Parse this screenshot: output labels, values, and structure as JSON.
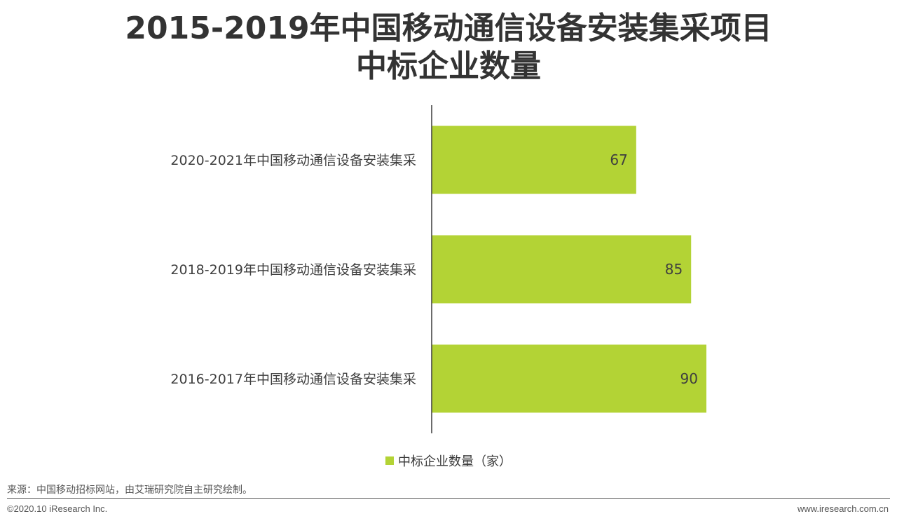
{
  "page": {
    "title_line1": "2015-2019年中国移动通信设备安装集采项目",
    "title_line2": "中标企业数量",
    "source": "来源：中国移动招标网站，由艾瑞研究院自主研究绘制。",
    "copyright": "©2020.10 iResearch Inc.",
    "website": "www.iresearch.com.cn"
  },
  "chart_data": {
    "type": "bar",
    "orientation": "horizontal",
    "categories": [
      "2020-2021年中国移动通信设备安装集采",
      "2018-2019年中国移动通信设备安装集采",
      "2016-2017年中国移动通信设备安装集采"
    ],
    "series": [
      {
        "name": "中标企业数量（家）",
        "values": [
          67,
          85,
          90
        ]
      }
    ],
    "data_labels": true,
    "xlim": [
      0,
      90
    ],
    "grid": false,
    "legend_position": "bottom",
    "bar_color": "#b3d335"
  }
}
